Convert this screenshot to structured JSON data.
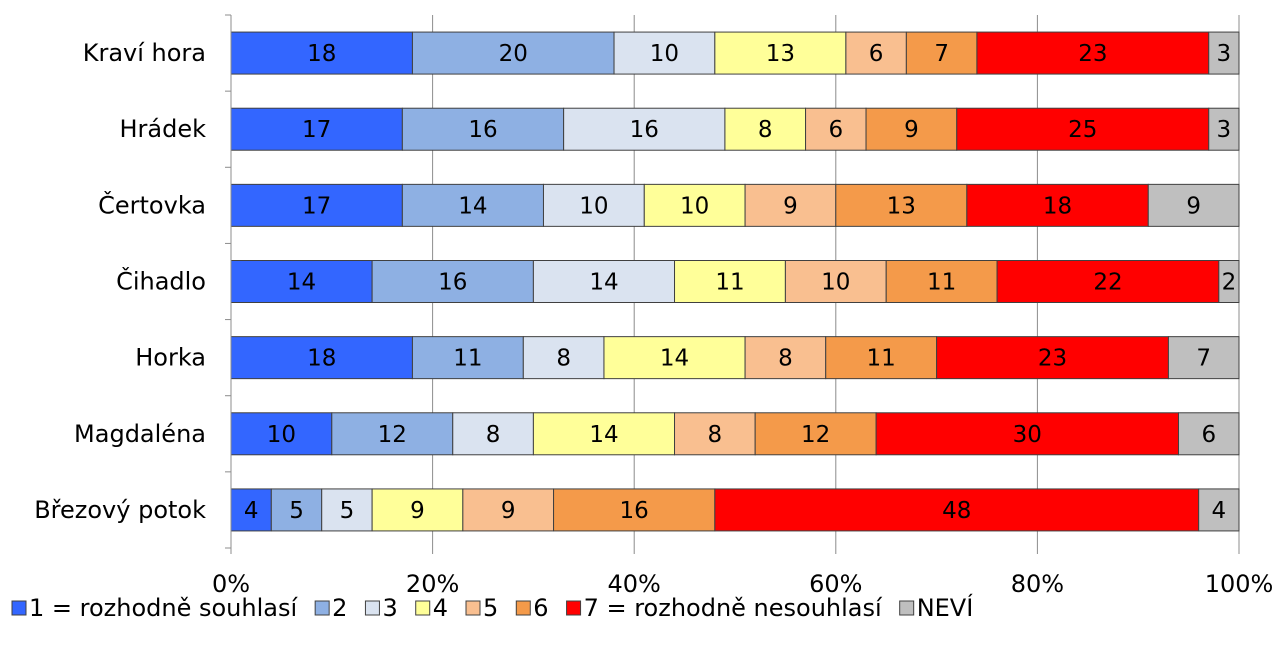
{
  "chart_data": {
    "type": "bar",
    "orientation": "horizontal",
    "stacked": true,
    "percent": true,
    "categories": [
      "Kraví hora",
      "Hrádek",
      "Čertovka",
      "Čihadlo",
      "Horka",
      "Magdaléna",
      "Březový potok"
    ],
    "series": [
      {
        "name": "1 = rozhodně souhlasí",
        "color": "#3366FF",
        "values": [
          18,
          17,
          17,
          14,
          18,
          10,
          4
        ]
      },
      {
        "name": "2",
        "color": "#8EB0E3",
        "values": [
          20,
          16,
          14,
          16,
          11,
          12,
          5
        ]
      },
      {
        "name": "3",
        "color": "#DAE3F0",
        "values": [
          10,
          16,
          10,
          14,
          8,
          8,
          5
        ]
      },
      {
        "name": "4",
        "color": "#FFFF99",
        "values": [
          13,
          8,
          10,
          11,
          14,
          14,
          9
        ]
      },
      {
        "name": "5",
        "color": "#F9BF90",
        "values": [
          6,
          6,
          9,
          10,
          8,
          8,
          9
        ]
      },
      {
        "name": "6",
        "color": "#F49A4A",
        "values": [
          7,
          9,
          13,
          11,
          11,
          12,
          16
        ]
      },
      {
        "name": "7 = rozhodně nesouhlasí",
        "color": "#FF0000",
        "values": [
          23,
          25,
          18,
          22,
          23,
          30,
          48
        ]
      },
      {
        "name": "NEVÍ",
        "color": "#BFBFBF",
        "values": [
          3,
          3,
          9,
          2,
          7,
          6,
          4
        ]
      }
    ],
    "xticks": [
      "0%",
      "20%",
      "40%",
      "60%",
      "80%",
      "100%"
    ],
    "xlim": [
      0,
      100
    ],
    "grid": true,
    "legend": "bottom",
    "title": "",
    "xlabel": "",
    "ylabel": ""
  }
}
